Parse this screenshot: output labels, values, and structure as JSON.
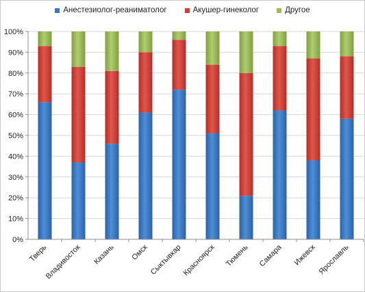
{
  "chart_data": {
    "type": "bar",
    "stacked": true,
    "percent": true,
    "title": "",
    "xlabel": "",
    "ylabel": "",
    "ylim": [
      0,
      100
    ],
    "yticks": [
      "0%",
      "10%",
      "20%",
      "30%",
      "40%",
      "50%",
      "60%",
      "70%",
      "80%",
      "90%",
      "100%"
    ],
    "grid": true,
    "legend_position": "top",
    "categories": [
      "Тверь",
      "Владивосток",
      "Казань",
      "Омск",
      "Сыктывкар",
      "Красноярск",
      "Тюмень",
      "Самара",
      "Ижевск",
      "Ярославль"
    ],
    "series": [
      {
        "name": "Анестезиолог-реаниматолог",
        "color": "#3a78c3",
        "values": [
          66,
          37,
          46,
          61,
          72,
          51,
          21,
          62,
          38,
          58
        ]
      },
      {
        "name": "Акушер-гинеколог",
        "color": "#cf3f35",
        "values": [
          27,
          46,
          35,
          29,
          24,
          33,
          59,
          31,
          49,
          30
        ]
      },
      {
        "name": "Другое",
        "color": "#9bbb59",
        "values": [
          7,
          17,
          19,
          10,
          4,
          16,
          20,
          7,
          13,
          12
        ]
      }
    ]
  }
}
